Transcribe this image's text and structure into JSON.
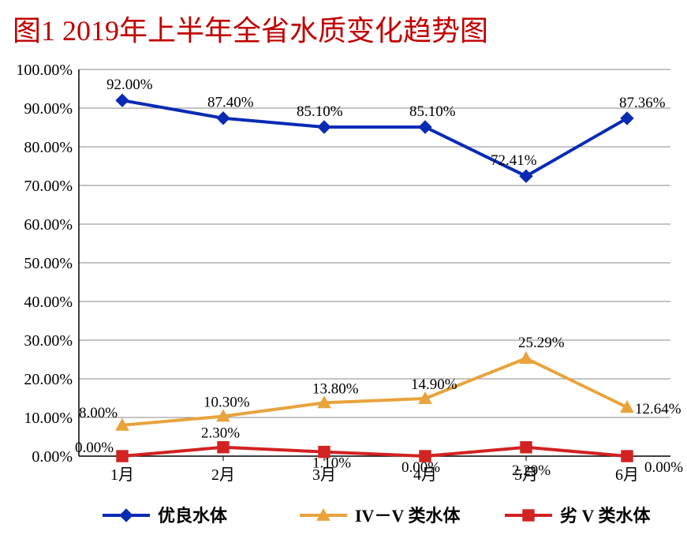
{
  "title": "图1  2019年上半年全省水质变化趋势图",
  "chart": {
    "type": "line",
    "categories": [
      "1月",
      "2月",
      "3月",
      "4月",
      "5月",
      "6月"
    ],
    "y_ticks": [
      "0.00%",
      "10.00%",
      "20.00%",
      "30.00%",
      "40.00%",
      "50.00%",
      "60.00%",
      "70.00%",
      "80.00%",
      "90.00%",
      "100.00%"
    ],
    "ylim": [
      0,
      100
    ],
    "grid_color": "#888888",
    "axis_color": "#000000",
    "background_color": "#ffffff",
    "line_width": 4,
    "marker_size": 8,
    "series": [
      {
        "name": "优良水体",
        "color": "#092bb4",
        "marker": "diamond",
        "values": [
          92.0,
          87.4,
          85.1,
          85.1,
          72.41,
          87.36
        ],
        "labels": [
          "92.00%",
          "87.40%",
          "85.10%",
          "85.10%",
          "72.41%",
          "87.36%"
        ],
        "label_pos": [
          [
            -20,
            -14
          ],
          [
            -20,
            -14
          ],
          [
            -35,
            -14
          ],
          [
            -20,
            -14
          ],
          [
            -45,
            -14
          ],
          [
            -10,
            -14
          ]
        ]
      },
      {
        "name": "IV－V 类水体",
        "color": "#e8a33d",
        "marker": "triangle",
        "values": [
          8.0,
          10.3,
          13.8,
          14.9,
          25.29,
          12.64
        ],
        "labels": [
          "8.00%",
          "10.30%",
          "13.80%",
          "14.90%",
          "25.29%",
          "12.64%"
        ],
        "label_pos": [
          [
            -55,
            -10
          ],
          [
            -25,
            -12
          ],
          [
            -15,
            -12
          ],
          [
            -18,
            -12
          ],
          [
            -10,
            -14
          ],
          [
            10,
            8
          ]
        ]
      },
      {
        "name": "劣 V 类水体",
        "color": "#d22222",
        "marker": "square",
        "values": [
          0.0,
          2.3,
          1.1,
          0.0,
          2.29,
          0.0
        ],
        "labels": [
          "0.00%",
          "2.30%",
          "1.10%",
          "0.00%",
          "2.29%",
          "0.00%"
        ],
        "label_pos": [
          [
            -60,
            -5
          ],
          [
            -28,
            -12
          ],
          [
            -15,
            20
          ],
          [
            -30,
            20
          ],
          [
            -18,
            35
          ],
          [
            22,
            20
          ]
        ]
      }
    ],
    "legend_items": [
      {
        "name": "优良水体",
        "color": "#092bb4",
        "marker": "diamond"
      },
      {
        "name": "IV－V 类水体",
        "color": "#e8a33d",
        "marker": "triangle"
      },
      {
        "name": "劣 V 类水体",
        "color": "#d22222",
        "marker": "square"
      }
    ],
    "title_fontsize": 36,
    "axis_fontsize": 20,
    "label_fontsize": 19,
    "legend_fontsize": 22
  }
}
